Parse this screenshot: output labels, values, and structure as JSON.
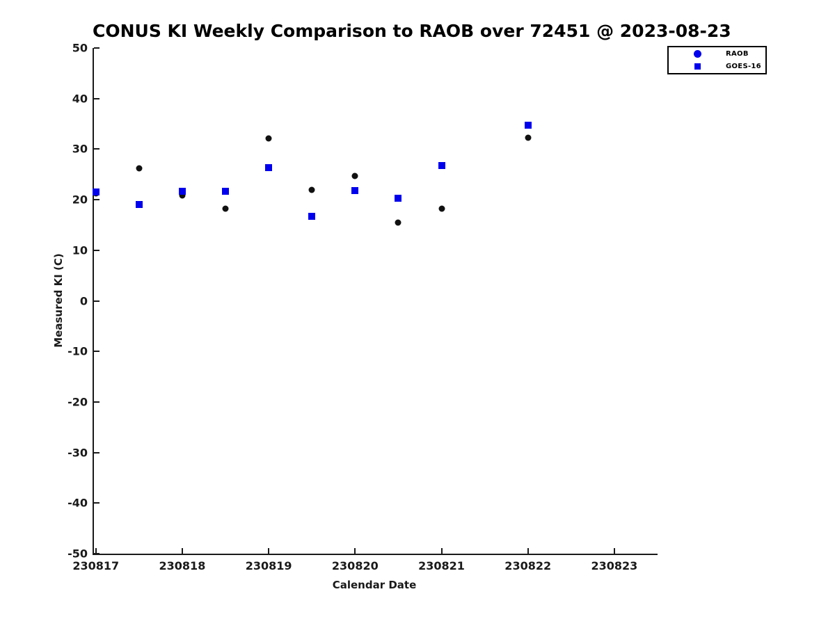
{
  "chart_data": {
    "type": "scatter",
    "title": "CONUS KI Weekly Comparison to RAOB over 72451 @ 2023-08-23",
    "xlabel": "Calendar Date",
    "ylabel": "Measured KI (C)",
    "xlim": [
      230816.978,
      230823.5
    ],
    "ylim": [
      -50,
      50
    ],
    "x_ticks": [
      "230817",
      "230818",
      "230819",
      "230820",
      "230821",
      "230822",
      "230823"
    ],
    "y_ticks": [
      "50",
      "40",
      "30",
      "20",
      "10",
      "0",
      "-10",
      "-20",
      "-30",
      "-40",
      "-50"
    ],
    "grid": false,
    "legend_position": "top-right",
    "background_color": "#ffffff",
    "axis_color": "#1a1a1a",
    "series": [
      {
        "name": "RAOB",
        "marker": "circle",
        "point_color": "#111111",
        "legend_marker_color": "#0000ee",
        "x": [
          230817.0,
          230817.5,
          230818.0,
          230818.5,
          230819.0,
          230819.5,
          230820.0,
          230820.5,
          230821.0,
          230822.0
        ],
        "y": [
          21.2,
          26.2,
          20.8,
          18.2,
          32.1,
          21.9,
          24.7,
          15.5,
          18.2,
          32.2
        ]
      },
      {
        "name": "GOES-16",
        "marker": "square",
        "point_color": "#0000ee",
        "legend_marker_color": "#0000ee",
        "x": [
          230817.0,
          230817.5,
          230818.0,
          230818.5,
          230819.0,
          230819.5,
          230820.0,
          230820.5,
          230821.0,
          230822.0
        ],
        "y": [
          21.5,
          19.1,
          21.6,
          21.6,
          26.4,
          16.7,
          21.8,
          20.3,
          26.8,
          34.8
        ]
      }
    ]
  }
}
